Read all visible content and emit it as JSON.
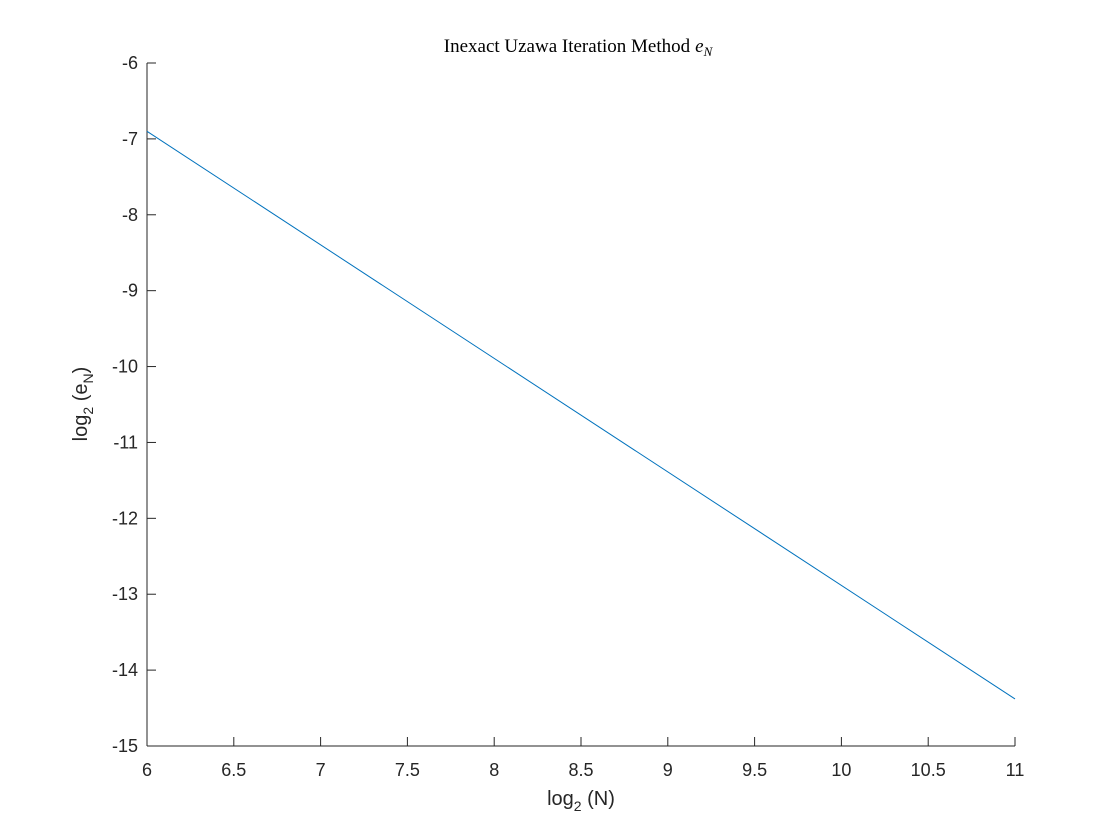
{
  "chart_data": {
    "type": "line",
    "title": "Inexact Uzawa Iteration Method",
    "title_math": {
      "base": "e",
      "sub": "N"
    },
    "xlabel": {
      "prefix": "log",
      "sub": "2",
      "suffix": " (N)"
    },
    "ylabel": {
      "prefix": "log",
      "sub": "2",
      "suffix_open": " (e",
      "inner_sub": "N",
      "suffix_close": ")"
    },
    "xlim": [
      6,
      11
    ],
    "ylim": [
      -15,
      -6
    ],
    "x_ticks": [
      "6",
      "6.5",
      "7",
      "7.5",
      "8",
      "8.5",
      "9",
      "9.5",
      "10",
      "10.5",
      "11"
    ],
    "y_ticks": [
      "-6",
      "-7",
      "-8",
      "-9",
      "-10",
      "-11",
      "-12",
      "-13",
      "-14",
      "-15"
    ],
    "grid": false,
    "series": [
      {
        "color": "#0072BD",
        "x": [
          6,
          11
        ],
        "y": [
          -6.9,
          -14.38
        ]
      }
    ]
  }
}
